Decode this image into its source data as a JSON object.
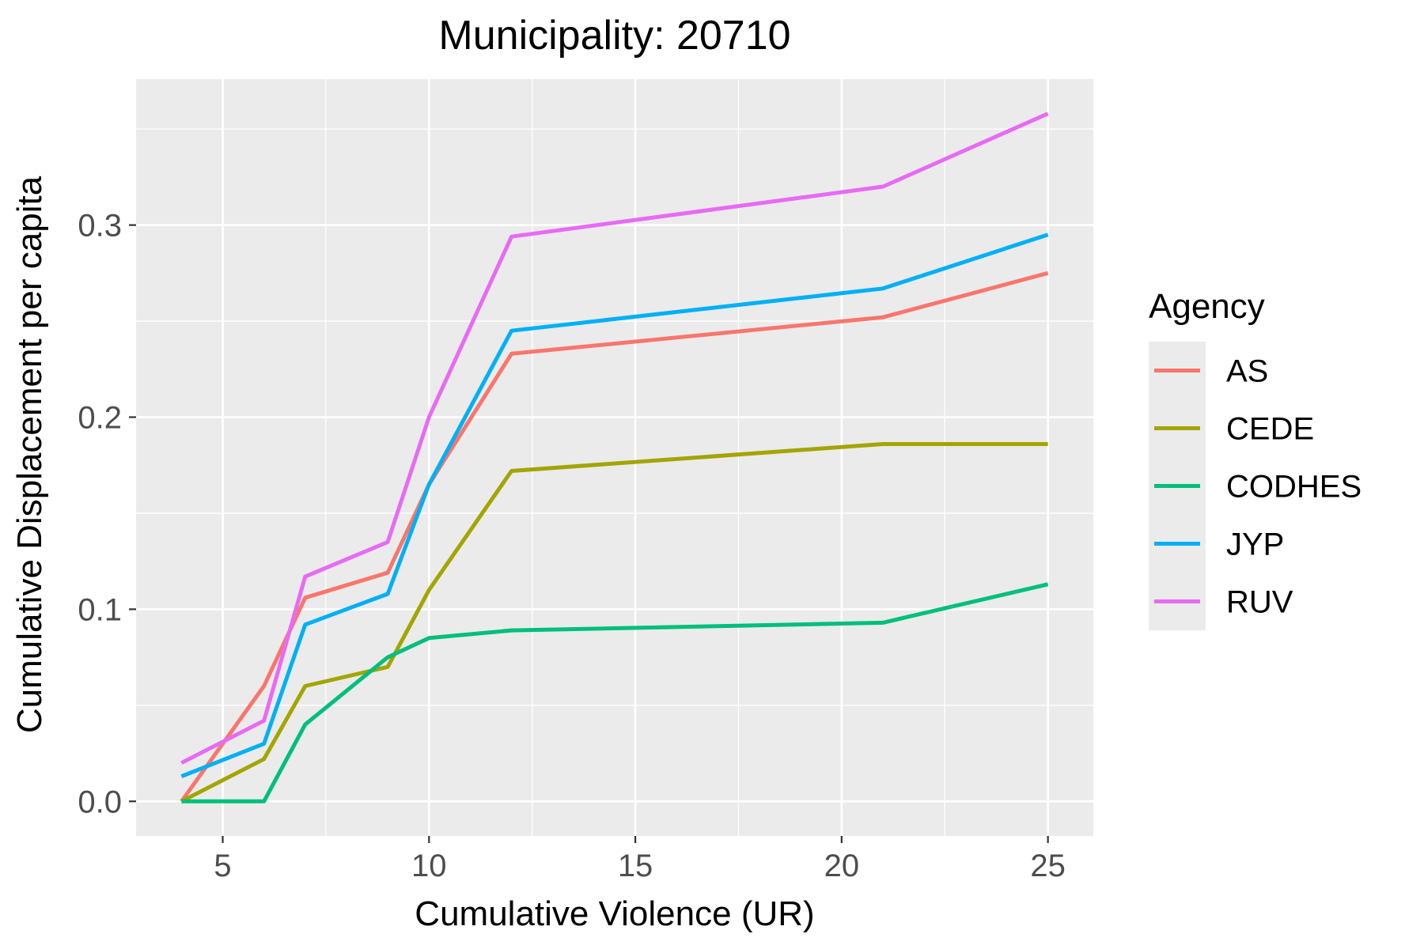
{
  "chart_data": {
    "type": "line",
    "title": "Municipality: 20710",
    "xlabel": "Cumulative Violence (UR)",
    "ylabel": "Cumulative Displacement per capita",
    "xlim": [
      2.9,
      26.1
    ],
    "ylim": [
      -0.018,
      0.376
    ],
    "x_ticks": [
      5,
      10,
      15,
      20,
      25
    ],
    "x_tick_labels": [
      "5",
      "10",
      "15",
      "20",
      "25"
    ],
    "y_ticks": [
      0.0,
      0.1,
      0.2,
      0.3
    ],
    "y_tick_labels": [
      "0.0",
      "0.1",
      "0.2",
      "0.3"
    ],
    "grid": true,
    "legend_title": "Agency",
    "legend_position": "right",
    "x": [
      4,
      6,
      7,
      9,
      10,
      12,
      21,
      25
    ],
    "series": [
      {
        "name": "AS",
        "color": "#F8766D",
        "values": [
          0.0,
          0.06,
          0.106,
          0.119,
          0.165,
          0.233,
          0.252,
          0.275
        ]
      },
      {
        "name": "CEDE",
        "color": "#A3A500",
        "values": [
          0.0,
          0.022,
          0.06,
          0.07,
          0.11,
          0.172,
          0.186,
          0.186
        ]
      },
      {
        "name": "CODHES",
        "color": "#00BF7D",
        "values": [
          0.0,
          0.0,
          0.04,
          0.075,
          0.085,
          0.089,
          0.093,
          0.113
        ]
      },
      {
        "name": "JYP",
        "color": "#00B0F6",
        "values": [
          0.013,
          0.03,
          0.092,
          0.108,
          0.165,
          0.245,
          0.267,
          0.295
        ]
      },
      {
        "name": "RUV",
        "color": "#E76BF3",
        "values": [
          0.02,
          0.042,
          0.117,
          0.135,
          0.2,
          0.294,
          0.32,
          0.358
        ]
      }
    ]
  }
}
